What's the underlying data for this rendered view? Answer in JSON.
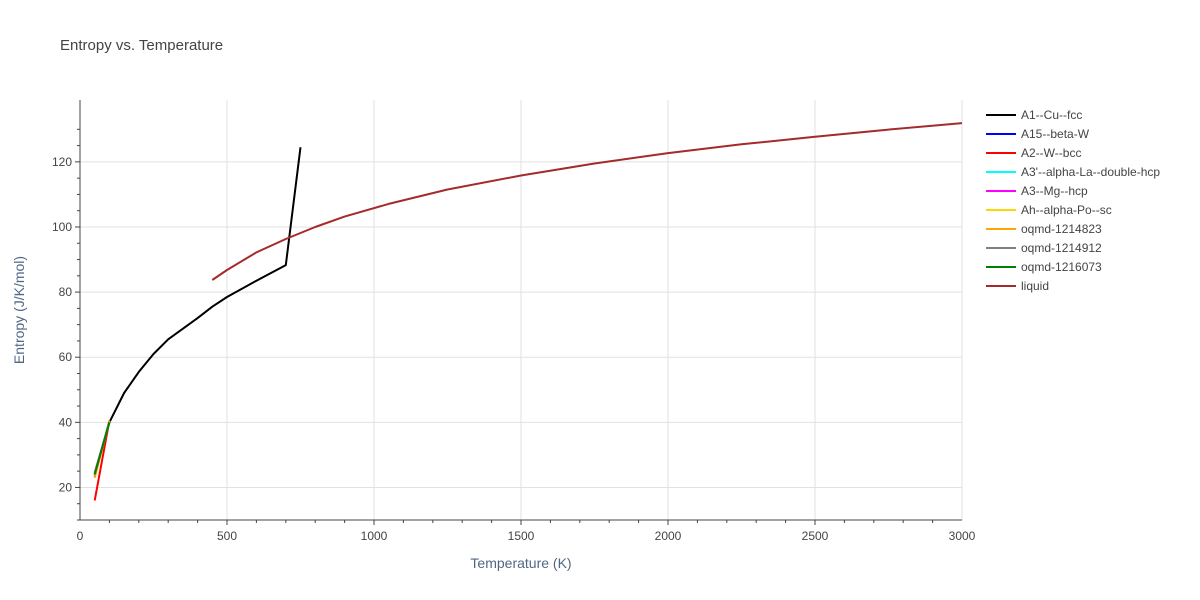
{
  "chart_data": {
    "type": "line",
    "title": "Entropy vs. Temperature",
    "xlabel": "Temperature (K)",
    "ylabel": "Entropy (J/K/mol)",
    "xlim": [
      0,
      3000
    ],
    "ylim": [
      10,
      139
    ],
    "xticks": [
      0,
      500,
      1000,
      1500,
      2000,
      2500,
      3000
    ],
    "yticks": [
      20,
      40,
      60,
      80,
      100,
      120
    ],
    "grid": true,
    "legend_position": "right",
    "series": [
      {
        "name": "A1--Cu--fcc",
        "color": "#000000",
        "x": [
          50,
          100,
          150,
          200,
          250,
          300,
          400,
          450,
          500,
          600,
          700,
          750
        ],
        "y": [
          24,
          40,
          49,
          55.5,
          61,
          65.5,
          72,
          75.5,
          78.5,
          83.5,
          88.3,
          124.5
        ]
      },
      {
        "name": "A15--beta-W",
        "color": "#0000ff",
        "x": [
          50,
          100
        ],
        "y": [
          23.5,
          40.5
        ]
      },
      {
        "name": "A2--W--bcc",
        "color": "#ff0000",
        "x": [
          50,
          100
        ],
        "y": [
          16,
          40.5
        ]
      },
      {
        "name": "A3'--alpha-La--double-hcp",
        "color": "#00ffff",
        "x": [
          50,
          100
        ],
        "y": [
          24,
          40
        ]
      },
      {
        "name": "A3--Mg--hcp",
        "color": "#ff00ff",
        "x": [
          50,
          100
        ],
        "y": [
          24.5,
          40
        ]
      },
      {
        "name": "Ah--alpha-Po--sc",
        "color": "#ffd700",
        "x": [
          50,
          100
        ],
        "y": [
          23,
          40.5
        ]
      },
      {
        "name": "oqmd-1214823",
        "color": "#ffa500",
        "x": [
          50,
          100
        ],
        "y": [
          23,
          40.5
        ]
      },
      {
        "name": "oqmd-1214912",
        "color": "#808080",
        "x": [
          50,
          100
        ],
        "y": [
          24.5,
          40
        ]
      },
      {
        "name": "oqmd-1216073",
        "color": "#008000",
        "x": [
          50,
          100
        ],
        "y": [
          24,
          40
        ]
      },
      {
        "name": "liquid",
        "color": "#a52a2a",
        "x": [
          450,
          500,
          600,
          700,
          800,
          900,
          1050,
          1250,
          1500,
          1750,
          2000,
          2250,
          2500,
          2750,
          3000
        ],
        "y": [
          83.7,
          86.8,
          92.2,
          96.3,
          100,
          103.2,
          107.1,
          111.5,
          115.8,
          119.5,
          122.7,
          125.4,
          127.7,
          129.9,
          131.9
        ]
      }
    ]
  }
}
